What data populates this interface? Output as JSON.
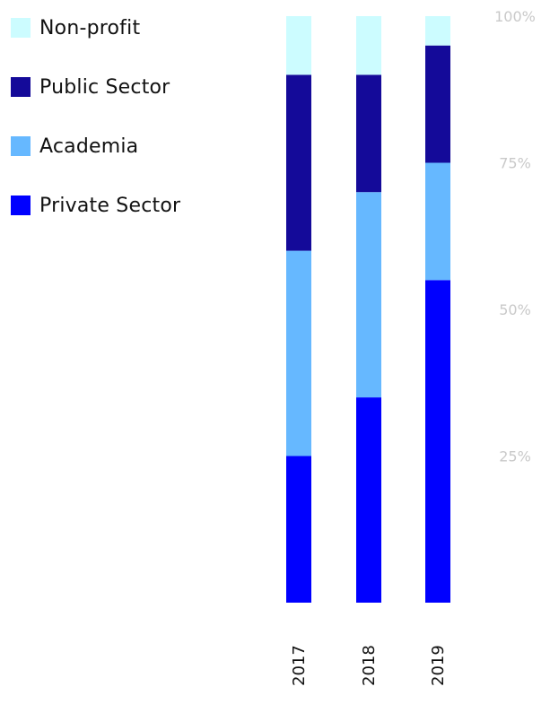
{
  "chart_data": {
    "type": "bar",
    "stacked": true,
    "normalized": true,
    "categories": [
      "2017",
      "2018",
      "2019"
    ],
    "series": [
      {
        "name": "Private Sector",
        "color": "#0000ff",
        "values": [
          25,
          35,
          55
        ]
      },
      {
        "name": "Academia",
        "color": "#66b8ff",
        "values": [
          35,
          35,
          20
        ]
      },
      {
        "name": "Public Sector",
        "color": "#140a99",
        "values": [
          30,
          20,
          20
        ]
      },
      {
        "name": "Non-profit",
        "color": "#ccfcff",
        "values": [
          10,
          10,
          5
        ]
      }
    ],
    "ylim": [
      0,
      100
    ],
    "yticks": [
      25,
      50,
      75,
      100
    ],
    "ytick_labels": [
      "25%",
      "50%",
      "75%",
      "100%"
    ],
    "legend_position": "top-left",
    "grid": false
  },
  "legend": {
    "items": [
      {
        "label": "Non-profit",
        "color": "#ccfcff"
      },
      {
        "label": "Public Sector",
        "color": "#140a99"
      },
      {
        "label": "Academia",
        "color": "#66b8ff"
      },
      {
        "label": "Private Sector",
        "color": "#0000ff"
      }
    ]
  }
}
